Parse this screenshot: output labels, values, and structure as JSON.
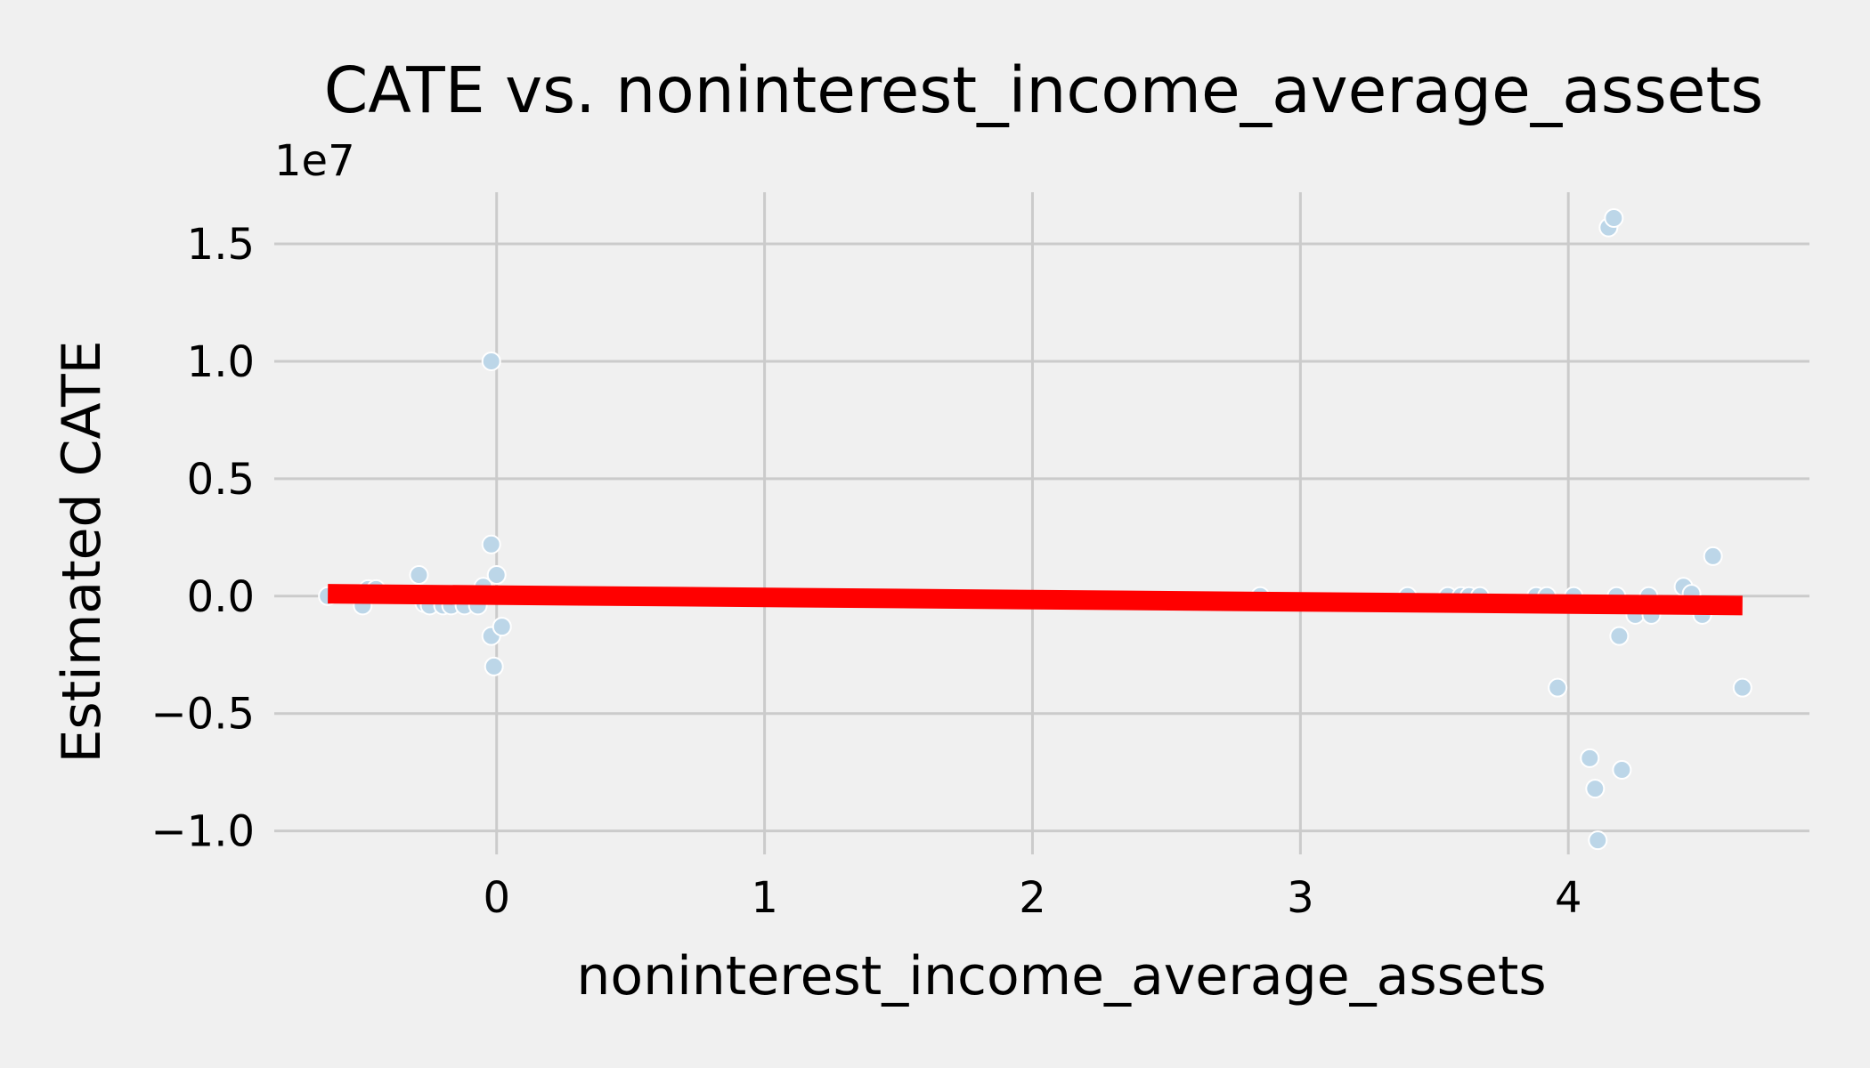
{
  "chart_data": {
    "type": "scatter",
    "title": "CATE vs. noninterest_income_average_assets",
    "xlabel": "noninterest_income_average_assets",
    "ylabel": "Estimated CATE",
    "y_offset_label": "1e7",
    "y_scale": 10000000,
    "xlim": [
      -0.83,
      4.9
    ],
    "ylim": [
      -1.1,
      1.72
    ],
    "x_ticks": [
      0,
      1,
      2,
      3,
      4
    ],
    "x_tick_labels": [
      "0",
      "1",
      "2",
      "3",
      "4"
    ],
    "y_ticks": [
      -1.0,
      -0.5,
      0.0,
      0.5,
      1.0,
      1.5
    ],
    "y_tick_labels": [
      "−1.0",
      "−0.5",
      "0.0",
      "0.5",
      "1.0",
      "1.5"
    ],
    "grid": true,
    "colors": {
      "background": "#f0f0f0",
      "grid": "#cbcbcb",
      "points": "#bcd6e8",
      "point_edge": "#ffffff",
      "trend": "#ff0000"
    },
    "series": [
      {
        "kind": "points",
        "x": [
          -0.63,
          -0.5,
          -0.48,
          -0.45,
          -0.29,
          -0.27,
          -0.25,
          -0.2,
          -0.17,
          -0.12,
          -0.07,
          -0.05,
          -0.02,
          -0.02,
          -0.02,
          -0.01,
          0.0,
          0.02,
          2.85,
          3.4,
          3.55,
          3.6,
          3.63,
          3.67,
          3.88,
          3.92,
          3.96,
          4.02,
          4.08,
          4.1,
          4.11,
          4.15,
          4.17,
          4.18,
          4.19,
          4.2,
          4.25,
          4.3,
          4.31,
          4.43,
          4.46,
          4.5,
          4.54,
          4.65
        ],
        "y": [
          0.0,
          -0.04,
          0.03,
          0.03,
          0.09,
          -0.03,
          -0.04,
          -0.04,
          -0.04,
          -0.04,
          -0.04,
          0.04,
          0.22,
          1.0,
          -0.17,
          -0.3,
          0.09,
          -0.13,
          0.0,
          0.0,
          0.0,
          0.0,
          0.0,
          0.0,
          0.0,
          0.0,
          -0.39,
          0.0,
          -0.69,
          -0.82,
          -1.04,
          1.57,
          1.61,
          0.0,
          -0.17,
          -0.74,
          -0.08,
          0.0,
          -0.08,
          0.04,
          0.01,
          -0.08,
          0.17,
          -0.39
        ]
      },
      {
        "kind": "line",
        "x": [
          -0.63,
          4.65
        ],
        "y": [
          0.01,
          -0.04
        ]
      }
    ]
  }
}
